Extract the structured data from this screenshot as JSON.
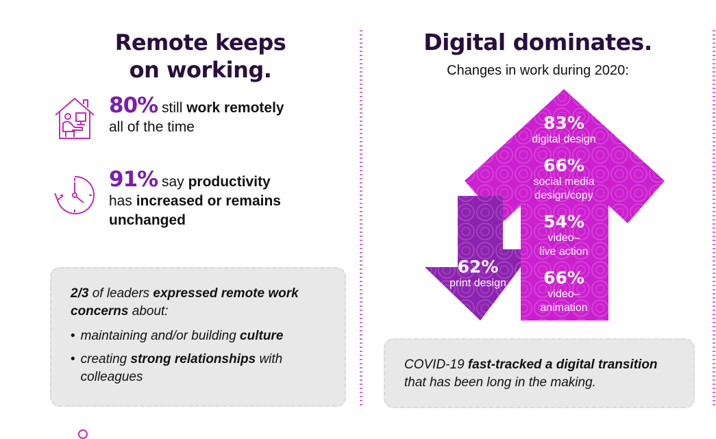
{
  "left": {
    "title_line1": "Remote keeps",
    "title_line2": "on working.",
    "stat1": {
      "icon": "home-office-icon",
      "percent": "80%",
      "text_a": " still ",
      "text_b": "work remotely",
      "line2": "all of the time"
    },
    "stat2": {
      "icon": "clock-icon",
      "percent": "91%",
      "text_a": " say ",
      "text_b": "productivity",
      "line2_a": "has ",
      "line2_b": "increased or remains",
      "line3": "unchanged"
    },
    "concerns": {
      "lead_bold": "2/3",
      "lead_text": " of leaders ",
      "lead_bold2": "expressed remote work",
      "lead_bold3": "concerns",
      "lead_text2": " about:",
      "bullet": "•",
      "item1_a": "maintaining and/or building ",
      "item1_b": "culture",
      "item2_a": "creating ",
      "item2_b": "strong relationships",
      "item2_c": " with",
      "item2_d": "colleagues"
    }
  },
  "right": {
    "title": "Digital dominates.",
    "subtitle": "Changes in work during 2020:",
    "up_items": [
      {
        "percent": "83%",
        "label1": "digital design",
        "label2": ""
      },
      {
        "percent": "66%",
        "label1": "social media",
        "label2": "design/copy"
      },
      {
        "percent": "54%",
        "label1": "video–",
        "label2": "live action"
      },
      {
        "percent": "66%",
        "label1": "video–",
        "label2": "animation"
      }
    ],
    "down_item": {
      "percent": "62%",
      "label1": "print design"
    },
    "callout": {
      "text_a": "COVID-19 ",
      "text_b": "fast-tracked a digital transition",
      "line2": "that has been long in the making."
    }
  },
  "colors": {
    "up_arrow": "#cc1fcf",
    "down_arrow": "#8e22b0",
    "accent_purple": "#7b1ea8",
    "title_dark": "#2a0f3d",
    "icon_magenta": "#c22bb6"
  }
}
